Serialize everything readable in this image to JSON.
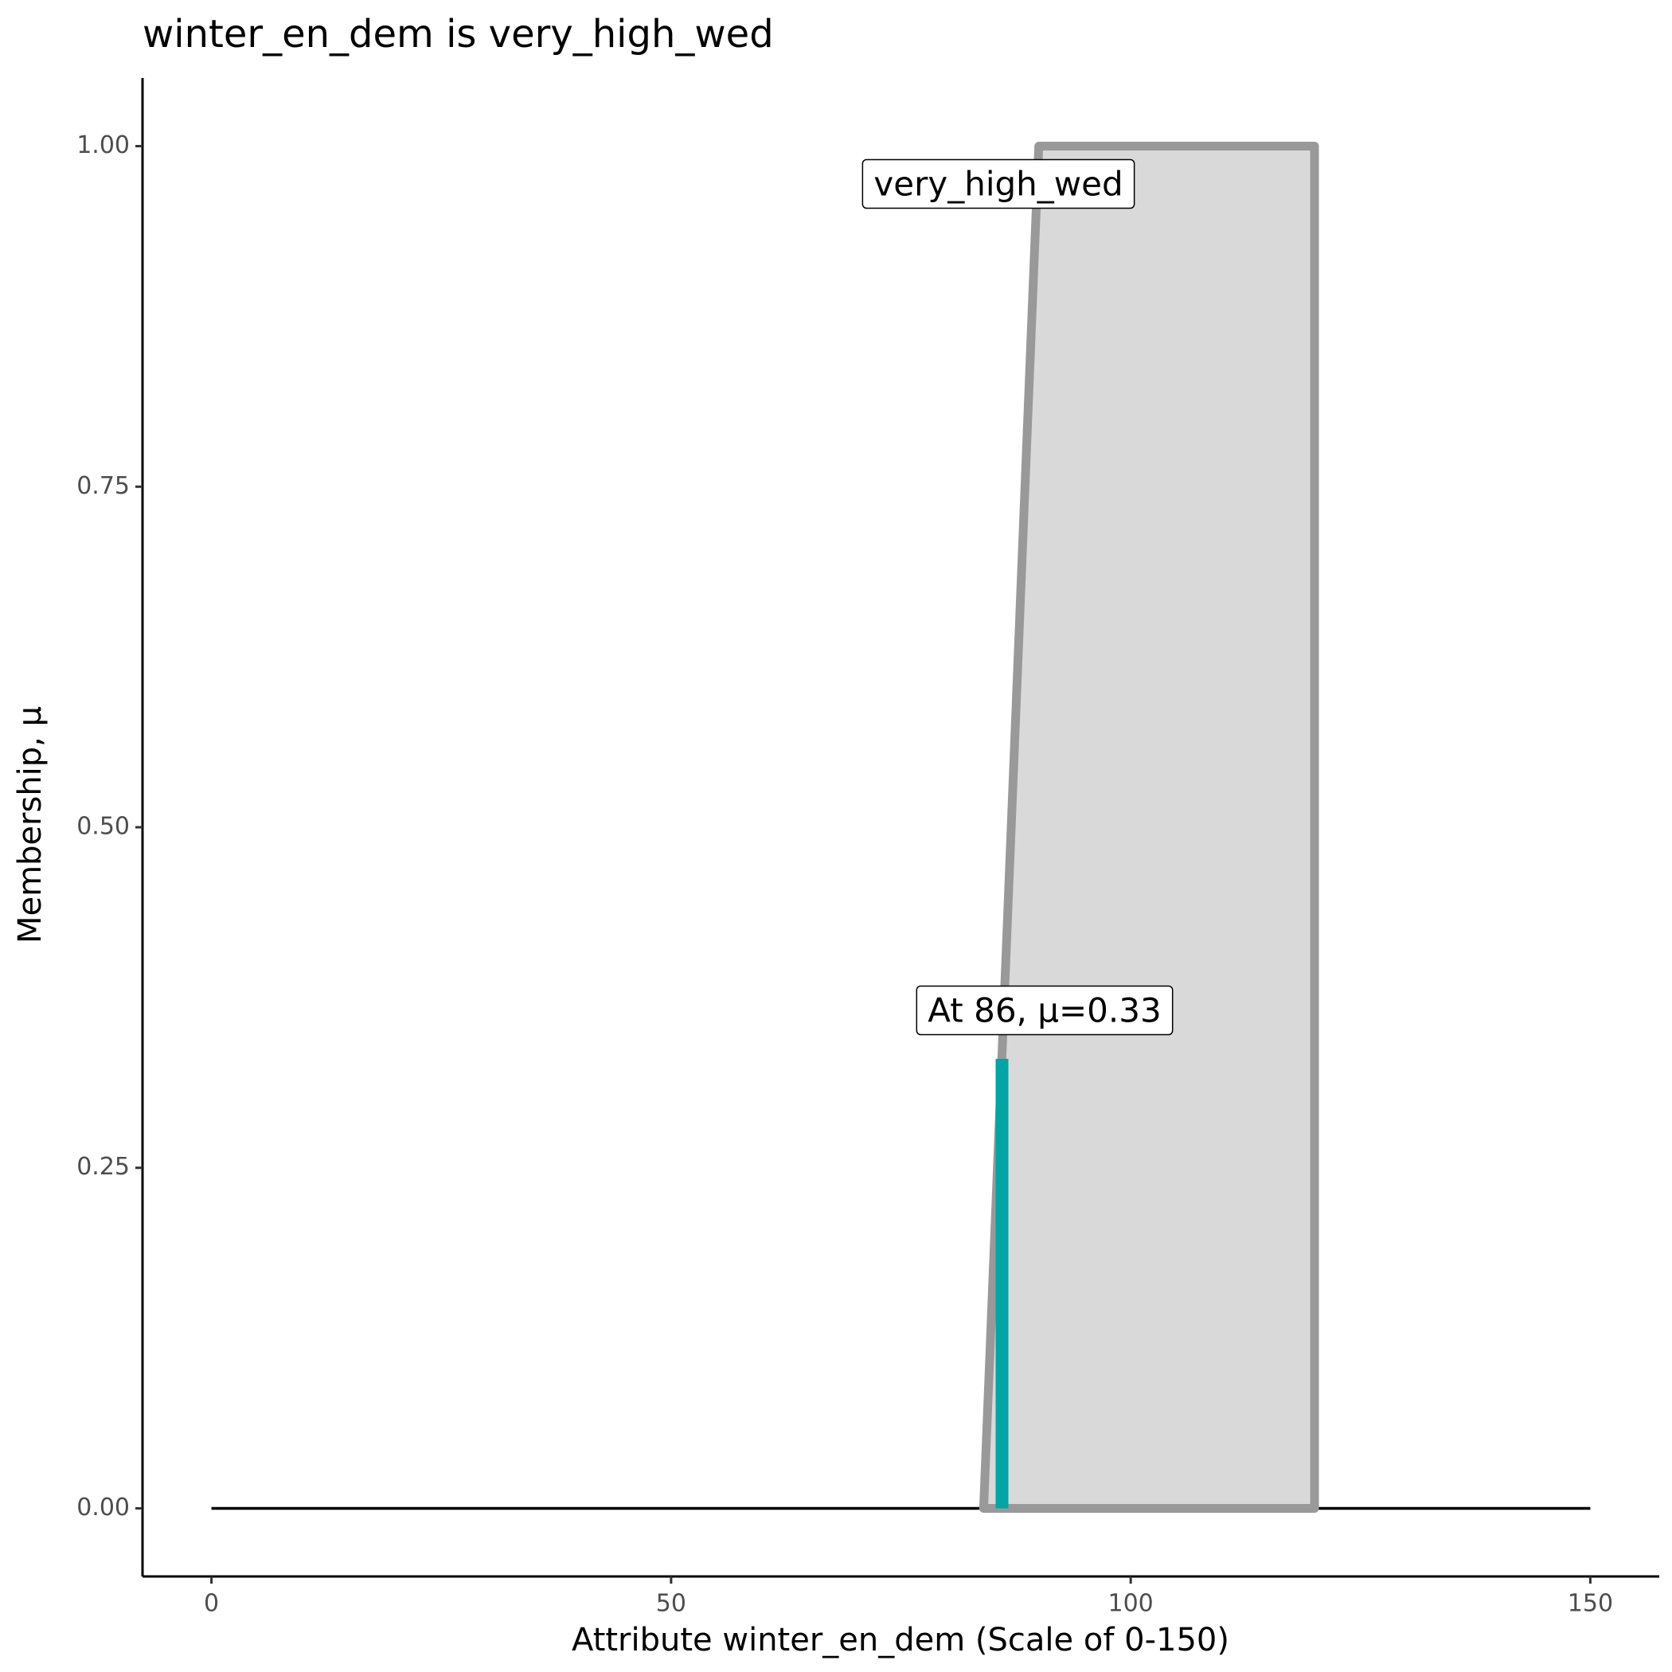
{
  "chart_data": {
    "type": "line",
    "title": "winter_en_dem is very_high_wed",
    "x_label": "Attribute winter_en_dem (Scale of 0-150)",
    "y_label": "Membership, μ",
    "annotations": [
      "very_high_wed",
      "At 86, μ=0.33"
    ],
    "series": [
      {
        "x": [
          0,
          150
        ],
        "values": [
          0,
          0
        ],
        "color": "#000000"
      },
      {
        "x": [
          84,
          90,
          120,
          120
        ],
        "values": [
          0,
          1,
          1,
          0
        ],
        "color": "#999999",
        "fill": "#d9d9d9"
      },
      {
        "x": [
          86,
          86
        ],
        "values": [
          0,
          0.33
        ],
        "color": "#00a5a5"
      }
    ],
    "xlim": [
      -7.5,
      157.5
    ],
    "xticks": [
      0,
      50,
      100,
      150
    ],
    "ylim": [
      -0.05,
      1.05
    ],
    "yticks": [
      {
        "value": 0,
        "label": "0.00"
      },
      {
        "value": 0.25,
        "label": "0.25"
      },
      {
        "value": 0.5,
        "label": "0.50"
      },
      {
        "value": 0.75,
        "label": "0.75"
      },
      {
        "value": 1,
        "label": "1.00"
      }
    ],
    "grid": false
  }
}
